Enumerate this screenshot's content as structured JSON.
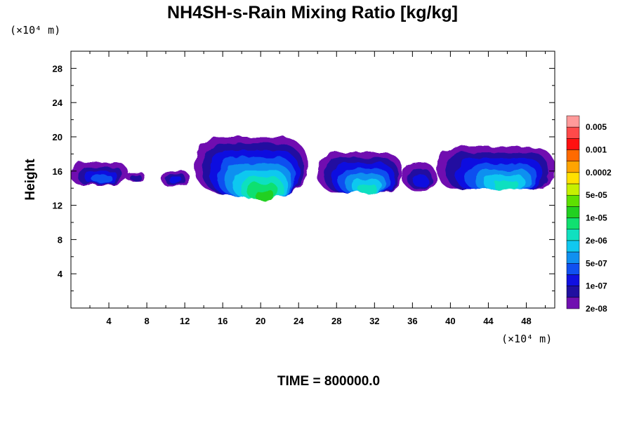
{
  "chart_data": {
    "type": "heatmap",
    "title": "NH4SH-s-Rain Mixing Ratio [kg/kg]",
    "ylabel": "Height",
    "y_unit": "(×10⁴ m)",
    "x_unit": "(×10⁴ m)",
    "xlim": [
      0,
      51
    ],
    "ylim": [
      0,
      30
    ],
    "x_ticks": [
      4,
      8,
      12,
      16,
      20,
      24,
      28,
      32,
      36,
      40,
      44,
      48
    ],
    "y_ticks": [
      4,
      8,
      12,
      16,
      20,
      24,
      28
    ],
    "time_label": "TIME = 800000.0",
    "colorbar": {
      "labels": [
        "0.005",
        "0.001",
        "0.0002",
        "5e-05",
        "1e-05",
        "2e-06",
        "5e-07",
        "1e-07",
        "2e-08"
      ],
      "colors_top_to_bottom": [
        "#ff9a9a",
        "#ff4a4a",
        "#ff1010",
        "#ff6a00",
        "#ffa400",
        "#ffe000",
        "#c6f000",
        "#5ee000",
        "#22d020",
        "#10e070",
        "#10e0c0",
        "#10c8f0",
        "#1090f0",
        "#1050f0",
        "#1010e0",
        "#2010a0",
        "#7010b0"
      ]
    },
    "clouds": [
      {
        "x": 0.0,
        "x2": 6.0,
        "y": 14.2,
        "y2": 17.0,
        "max_level": 3
      },
      {
        "x": 5.8,
        "x2": 7.8,
        "y": 14.8,
        "y2": 15.8,
        "max_level": 1
      },
      {
        "x": 9.5,
        "x2": 12.5,
        "y": 14.2,
        "y2": 16.0,
        "max_level": 2
      },
      {
        "x": 13.0,
        "x2": 25.0,
        "y": 13.0,
        "y2": 20.0,
        "max_level": 8
      },
      {
        "x": 26.0,
        "x2": 35.0,
        "y": 13.2,
        "y2": 18.2,
        "max_level": 6
      },
      {
        "x": 35.0,
        "x2": 38.5,
        "y": 13.5,
        "y2": 17.0,
        "max_level": 2
      },
      {
        "x": 38.5,
        "x2": 51.0,
        "y": 13.6,
        "y2": 18.8,
        "max_level": 6
      }
    ]
  }
}
